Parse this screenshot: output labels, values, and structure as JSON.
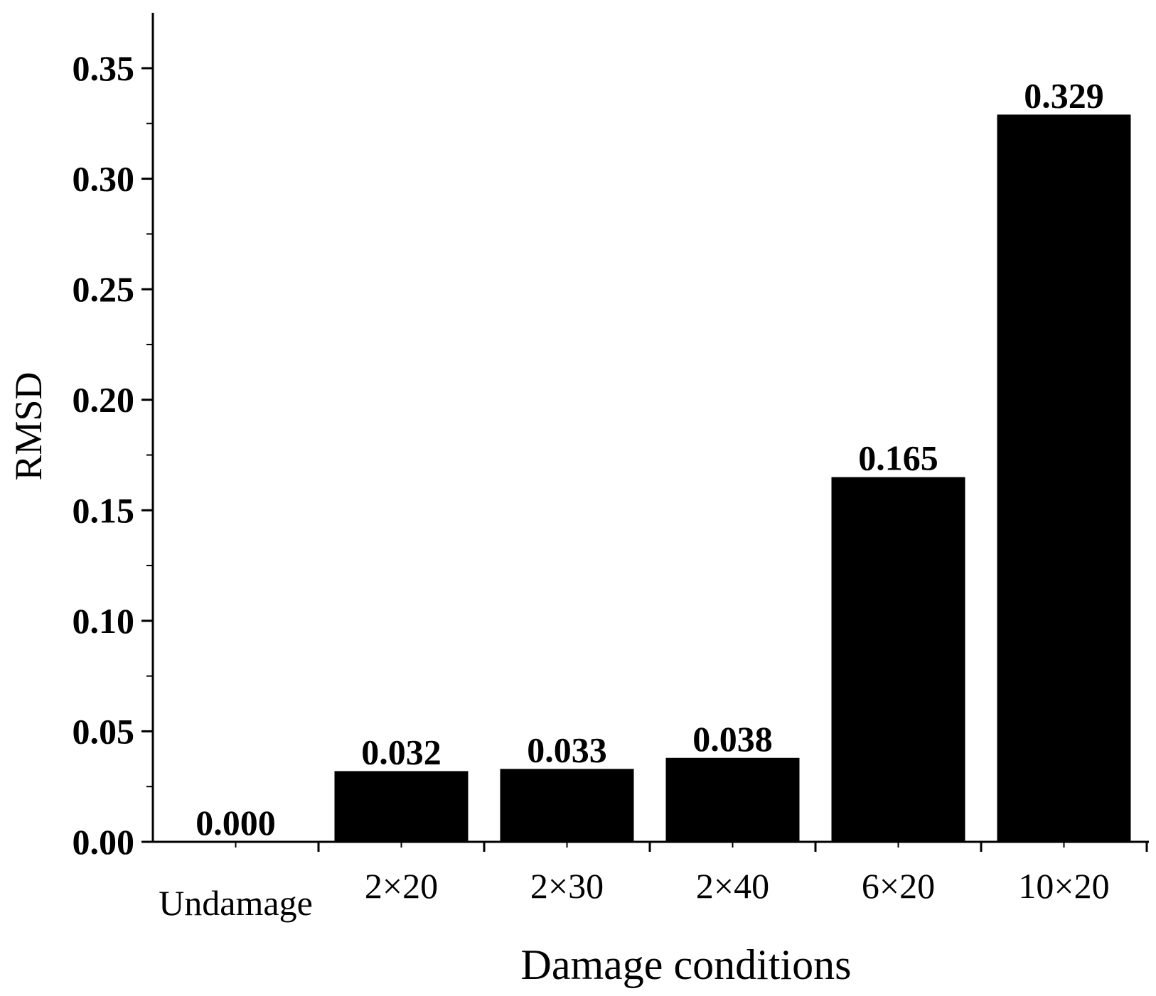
{
  "chart_data": {
    "type": "bar",
    "categories": [
      "Undamage",
      "2×20",
      "2×30",
      "2×40",
      "6×20",
      "10×20"
    ],
    "values": [
      0.0,
      0.032,
      0.033,
      0.038,
      0.165,
      0.329
    ],
    "data_labels": [
      "0.000",
      "0.032",
      "0.033",
      "0.038",
      "0.165",
      "0.329"
    ],
    "xlabel": "Damage conditions",
    "ylabel": "RMSD",
    "ylim": [
      0,
      0.375
    ],
    "yticks": [
      0.0,
      0.05,
      0.1,
      0.15,
      0.2,
      0.25,
      0.3,
      0.35
    ],
    "ytick_labels": [
      "0.00",
      "0.05",
      "0.10",
      "0.15",
      "0.20",
      "0.25",
      "0.30",
      "0.35"
    ],
    "grid": false,
    "legend": "none",
    "bar_color": "#000000"
  }
}
